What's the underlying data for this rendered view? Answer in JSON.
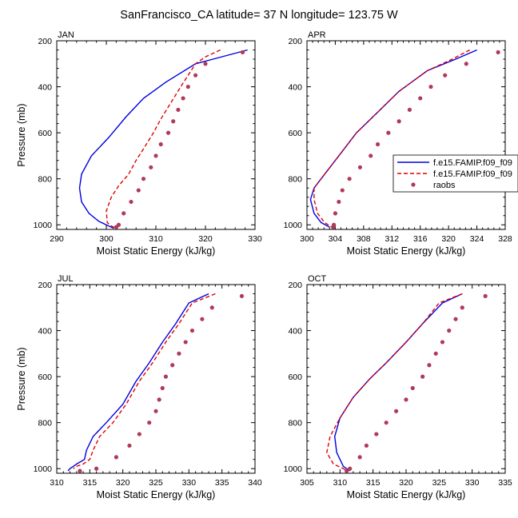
{
  "figure": {
    "title": "SanFrancisco_CA  latitude= 37 N longitude= 123.75 W"
  },
  "colors": {
    "model_solid": "#0000e0",
    "model_dashed": "#e00000",
    "raobs": "#b03a5a"
  },
  "chart_data": [
    {
      "type": "line",
      "panel_label": "JAN",
      "xlabel": "Moist Static Energy (kJ/kg)",
      "ylabel": "Pressure (mb)",
      "xlim": [
        290,
        330
      ],
      "ylim": [
        200,
        1020
      ],
      "y_reversed": true,
      "xticks": [
        290,
        300,
        310,
        320,
        330
      ],
      "yticks": [
        200,
        400,
        600,
        800,
        1000
      ],
      "series": [
        {
          "style": "solid",
          "x": [
            328.5,
            318,
            312,
            307.5,
            304,
            300.5,
            297,
            295,
            294.6,
            295,
            296.5,
            298.5,
            300.5,
            301.5
          ],
          "y": [
            240,
            300,
            380,
            450,
            530,
            620,
            700,
            780,
            840,
            900,
            950,
            985,
            1005,
            1015
          ]
        },
        {
          "style": "dashed",
          "x": [
            323,
            320,
            318,
            316.5,
            315,
            313,
            311,
            309.5,
            307.5,
            306,
            304.5,
            302.5,
            301,
            300,
            300.2,
            301,
            302
          ],
          "y": [
            240,
            270,
            300,
            350,
            400,
            470,
            540,
            600,
            670,
            720,
            780,
            830,
            880,
            940,
            990,
            1005,
            1015
          ]
        },
        {
          "style": "dots",
          "x": [
            327.5,
            320,
            318,
            316.5,
            315.5,
            314.5,
            313.5,
            312.5,
            311,
            310,
            309,
            307.5,
            306.5,
            305,
            303.5,
            302.5,
            302
          ],
          "y": [
            250,
            300,
            350,
            400,
            450,
            500,
            550,
            600,
            650,
            700,
            750,
            800,
            850,
            900,
            950,
            1000,
            1010
          ]
        }
      ]
    },
    {
      "type": "line",
      "panel_label": "APR",
      "xlabel": "Moist Static Energy (kJ/kg)",
      "ylabel": "",
      "xlim": [
        300,
        328
      ],
      "ylim": [
        200,
        1020
      ],
      "y_reversed": true,
      "xticks": [
        300,
        304,
        308,
        312,
        316,
        320,
        324,
        328
      ],
      "yticks": [
        200,
        400,
        600,
        800,
        1000
      ],
      "legend": {
        "placement": "right",
        "entries": [
          "f.e15.FAMIP.f09_f09",
          "f.e15.FAMIP.f09_f09",
          "raobs"
        ]
      },
      "series": [
        {
          "name": "f.e15.FAMIP.f09_f09",
          "style": "solid",
          "x": [
            324,
            321,
            317,
            313,
            310,
            307,
            304.5,
            302.5,
            301,
            300.5,
            301,
            302,
            303.2
          ],
          "y": [
            240,
            280,
            330,
            420,
            510,
            600,
            700,
            780,
            840,
            890,
            950,
            990,
            1010
          ]
        },
        {
          "name": "f.e15.FAMIP.f09_f09",
          "style": "dashed",
          "x": [
            323,
            320.5,
            317,
            313,
            310,
            307,
            304.5,
            302.5,
            301,
            301,
            301.5,
            302.5,
            303.5
          ],
          "y": [
            240,
            280,
            330,
            420,
            510,
            600,
            700,
            780,
            840,
            890,
            950,
            990,
            1010
          ]
        },
        {
          "name": "raobs",
          "style": "dots",
          "x": [
            327,
            322.5,
            319.5,
            317.5,
            316,
            314.5,
            313,
            311.5,
            310,
            309,
            307.5,
            306,
            305,
            304.5,
            304,
            303.8,
            303.7
          ],
          "y": [
            250,
            300,
            350,
            400,
            450,
            500,
            550,
            600,
            650,
            700,
            750,
            800,
            850,
            900,
            950,
            1000,
            1010
          ]
        }
      ]
    },
    {
      "type": "line",
      "panel_label": "JUL",
      "xlabel": "Moist Static Energy (kJ/kg)",
      "ylabel": "Pressure (mb)",
      "xlim": [
        310,
        340
      ],
      "ylim": [
        200,
        1020
      ],
      "y_reversed": true,
      "xticks": [
        310,
        315,
        320,
        325,
        330,
        335,
        340
      ],
      "yticks": [
        200,
        400,
        600,
        800,
        1000
      ],
      "series": [
        {
          "style": "solid",
          "x": [
            333,
            330,
            328,
            326,
            324,
            322,
            320,
            317.5,
            315.5,
            314.5,
            314.2,
            313,
            312.5,
            312,
            311.7
          ],
          "y": [
            240,
            280,
            370,
            450,
            540,
            620,
            720,
            800,
            860,
            920,
            960,
            980,
            990,
            1000,
            1010
          ]
        },
        {
          "style": "dashed",
          "x": [
            334,
            330.5,
            328.5,
            326.5,
            324.5,
            322.5,
            320.5,
            318.5,
            316.5,
            315.5,
            315,
            314,
            313,
            312.5
          ],
          "y": [
            240,
            280,
            370,
            450,
            540,
            620,
            720,
            800,
            860,
            920,
            960,
            980,
            990,
            1000
          ]
        },
        {
          "style": "dots",
          "x": [
            338,
            333.5,
            332,
            330.5,
            329.5,
            328.5,
            327.5,
            326.5,
            326,
            325.5,
            325,
            324,
            322.5,
            321,
            319,
            316,
            313.5
          ],
          "y": [
            250,
            300,
            350,
            400,
            450,
            500,
            550,
            600,
            650,
            700,
            750,
            800,
            850,
            900,
            950,
            1000,
            1010
          ]
        }
      ]
    },
    {
      "type": "line",
      "panel_label": "OCT",
      "xlabel": "Moist Static Energy (kJ/kg)",
      "ylabel": "",
      "xlim": [
        305,
        335
      ],
      "ylim": [
        200,
        1020
      ],
      "y_reversed": true,
      "xticks": [
        305,
        310,
        315,
        320,
        325,
        330,
        335
      ],
      "yticks": [
        200,
        400,
        600,
        800,
        1000
      ],
      "series": [
        {
          "style": "solid",
          "x": [
            328.5,
            325.5,
            322.5,
            320,
            317,
            314.5,
            312,
            310,
            309.2,
            309.5,
            310.5,
            311.5
          ],
          "y": [
            240,
            280,
            370,
            450,
            540,
            610,
            690,
            780,
            860,
            930,
            990,
            1010
          ]
        },
        {
          "style": "dashed",
          "x": [
            328.5,
            325,
            322.5,
            320,
            317,
            314.5,
            312,
            310,
            308.5,
            308,
            309,
            310.5,
            311
          ],
          "y": [
            240,
            280,
            370,
            450,
            540,
            610,
            690,
            780,
            860,
            930,
            980,
            1000,
            1010
          ]
        },
        {
          "style": "dots",
          "x": [
            332,
            328.5,
            327.5,
            326.5,
            325.5,
            324.5,
            323.5,
            322.5,
            321,
            320,
            318.5,
            317,
            315.5,
            314,
            313,
            311.5,
            311
          ],
          "y": [
            250,
            300,
            350,
            400,
            450,
            500,
            550,
            600,
            650,
            700,
            750,
            800,
            850,
            900,
            950,
            1000,
            1010
          ]
        }
      ]
    }
  ]
}
